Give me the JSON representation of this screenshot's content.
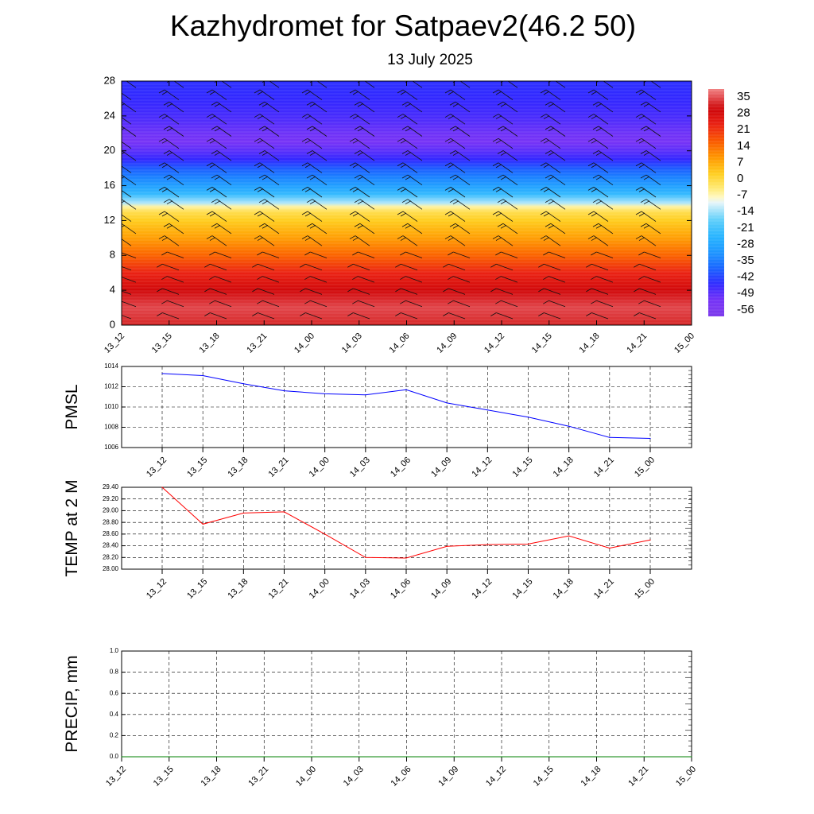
{
  "title": "Kazhydromet for Satpaev2(46.2 50)",
  "subtitle": "13 July 2025",
  "time_labels": [
    "13_12",
    "13_15",
    "13_18",
    "13_21",
    "14_00",
    "14_03",
    "14_06",
    "14_09",
    "14_12",
    "14_15",
    "14_18",
    "14_21",
    "15_00"
  ],
  "chart_data": [
    {
      "type": "heatmap",
      "x": [
        "13_12",
        "13_15",
        "13_18",
        "13_21",
        "14_00",
        "14_03",
        "14_06",
        "14_09",
        "14_12",
        "14_15",
        "14_18",
        "14_21",
        "15_00"
      ],
      "ylim": [
        0,
        28
      ],
      "yticks": [
        "0",
        "4",
        "8",
        "12",
        "16",
        "20",
        "24",
        "28"
      ],
      "colorbar": {
        "labels": [
          "35",
          "28",
          "21",
          "14",
          "7",
          "0",
          "-7",
          "-14",
          "-21",
          "-28",
          "-35",
          "-42",
          "-49",
          "-56"
        ],
        "range": [
          -63,
          37
        ]
      },
      "levels_km": [
        0,
        2,
        4,
        6,
        8,
        10,
        12,
        13,
        13.6,
        14,
        15,
        16,
        17,
        18,
        19,
        20,
        21,
        22,
        23,
        24,
        26,
        28
      ],
      "temperature_by_level": [
        31,
        33,
        27,
        21,
        13,
        6,
        0,
        -4,
        -9,
        -16,
        -26,
        -33,
        -38,
        -43,
        -49,
        -53,
        -56,
        -55,
        -53,
        -51,
        -49,
        -48
      ],
      "wind_barbs": "shown"
    },
    {
      "type": "line",
      "ylabel": "PMSL",
      "ylim": [
        1006,
        1014
      ],
      "yticks": [
        "1006",
        "1008",
        "1010",
        "1012",
        "1014"
      ],
      "x": [
        "13_12",
        "13_15",
        "13_18",
        "13_21",
        "14_00",
        "14_03",
        "14_06",
        "14_09",
        "14_12",
        "14_15",
        "14_18",
        "14_21",
        "15_00"
      ],
      "series": [
        {
          "values": [
            1013.3,
            1013.1,
            1012.3,
            1011.6,
            1011.3,
            1011.2,
            1011.7,
            1010.4,
            1009.7,
            1009.0,
            1008.1,
            1007.0,
            1006.9
          ],
          "color": "#0000ff"
        }
      ]
    },
    {
      "type": "line",
      "ylabel": "TEMP at 2 M",
      "ylim": [
        28.0,
        29.4
      ],
      "yticks": [
        "28.00",
        "28.20",
        "28.40",
        "28.60",
        "28.80",
        "29.00",
        "29.20",
        "29.40"
      ],
      "x": [
        "13_12",
        "13_15",
        "13_18",
        "13_21",
        "14_00",
        "14_03",
        "14_06",
        "14_09",
        "14_12",
        "14_15",
        "14_18",
        "14_21",
        "15_00"
      ],
      "series": [
        {
          "values": [
            29.4,
            28.77,
            28.96,
            28.98,
            28.6,
            28.2,
            28.19,
            28.39,
            28.42,
            28.43,
            28.57,
            28.36,
            28.5
          ],
          "color": "#ff0000"
        }
      ]
    },
    {
      "type": "line",
      "ylabel": "PRECIP, mm",
      "ylim": [
        0.0,
        1.0
      ],
      "yticks": [
        "0.0",
        "0.2",
        "0.4",
        "0.6",
        "0.8",
        "1.0"
      ],
      "x": [
        "13_12",
        "13_15",
        "13_18",
        "13_21",
        "14_00",
        "14_03",
        "14_06",
        "14_09",
        "14_12",
        "14_15",
        "14_18",
        "14_21",
        "15_00"
      ],
      "series": [
        {
          "values": [
            0,
            0,
            0,
            0,
            0,
            0,
            0,
            0,
            0,
            0,
            0,
            0,
            0
          ],
          "color": "#008000"
        }
      ]
    }
  ]
}
